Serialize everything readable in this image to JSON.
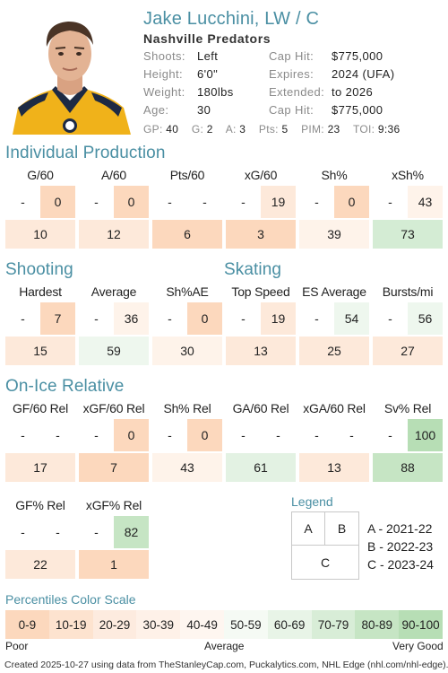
{
  "header": {
    "name": "Jake Lucchini, LW / C",
    "team": "Nashville Predators",
    "bio_left": [
      {
        "label": "Shoots:",
        "value": "Left"
      },
      {
        "label": "Height:",
        "value": "6'0\""
      },
      {
        "label": "Weight:",
        "value": "180lbs"
      },
      {
        "label": "Age:",
        "value": "30"
      }
    ],
    "bio_right": [
      {
        "label": "Cap Hit:",
        "value": "$775,000"
      },
      {
        "label": "Expires:",
        "value": "2024 (UFA)"
      },
      {
        "label": "Extended:",
        "value": "to 2026"
      },
      {
        "label": "Cap Hit:",
        "value": "$775,000"
      }
    ],
    "statline": [
      {
        "label": "GP:",
        "value": "40"
      },
      {
        "label": "G:",
        "value": "2"
      },
      {
        "label": "A:",
        "value": "3"
      },
      {
        "label": "Pts:",
        "value": "5"
      },
      {
        "label": "PIM:",
        "value": "23"
      },
      {
        "label": "TOI:",
        "value": "9:36"
      }
    ]
  },
  "sections": {
    "individual": "Individual Production",
    "shooting": "Shooting",
    "skating": "Skating",
    "onice": "On-Ice Relative"
  },
  "stats": {
    "g60": {
      "label": "G/60",
      "a": "-",
      "b": "0",
      "c": "10",
      "ca": "#ffffff",
      "cb": "#fcd8bd",
      "cc": "#fde9da"
    },
    "a60": {
      "label": "A/60",
      "a": "-",
      "b": "0",
      "c": "12",
      "ca": "#ffffff",
      "cb": "#fcd8bd",
      "cc": "#fde9da"
    },
    "pts60": {
      "label": "Pts/60",
      "a": "-",
      "b": "-",
      "c": "6",
      "ca": "#ffffff",
      "cb": "#ffffff",
      "cc": "#fcd8bd"
    },
    "xg60": {
      "label": "xG/60",
      "a": "-",
      "b": "19",
      "c": "3",
      "ca": "#ffffff",
      "cb": "#fde9da",
      "cc": "#fcd8bd"
    },
    "sh": {
      "label": "Sh%",
      "a": "-",
      "b": "0",
      "c": "39",
      "ca": "#ffffff",
      "cb": "#fcd8bd",
      "cc": "#fef3ea"
    },
    "xsh": {
      "label": "xSh%",
      "a": "-",
      "b": "43",
      "c": "73",
      "ca": "#ffffff",
      "cb": "#fef3ea",
      "cc": "#d4ecd4"
    },
    "hardest": {
      "label": "Hardest",
      "a": "-",
      "b": "7",
      "c": "15",
      "ca": "#ffffff",
      "cb": "#fcd8bd",
      "cc": "#fde9da"
    },
    "average": {
      "label": "Average",
      "a": "-",
      "b": "36",
      "c": "59",
      "ca": "#ffffff",
      "cb": "#fef3ea",
      "cc": "#eef7ee"
    },
    "shae": {
      "label": "Sh%AE",
      "a": "-",
      "b": "0",
      "c": "30",
      "ca": "#ffffff",
      "cb": "#fcd8bd",
      "cc": "#fef3ea"
    },
    "topspeed": {
      "label": "Top Speed",
      "a": "-",
      "b": "19",
      "c": "13",
      "ca": "#ffffff",
      "cb": "#fde9da",
      "cc": "#fde9da"
    },
    "esavg": {
      "label": "ES Average",
      "a": "-",
      "b": "54",
      "c": "25",
      "ca": "#ffffff",
      "cb": "#eef7ee",
      "cc": "#fde9da"
    },
    "bursts": {
      "label": "Bursts/mi",
      "a": "-",
      "b": "56",
      "c": "27",
      "ca": "#ffffff",
      "cb": "#eef7ee",
      "cc": "#fde9da"
    },
    "gf60": {
      "label": "GF/60 Rel",
      "a": "-",
      "b": "-",
      "c": "17",
      "ca": "#ffffff",
      "cb": "#ffffff",
      "cc": "#fde9da"
    },
    "xgf60": {
      "label": "xGF/60 Rel",
      "a": "-",
      "b": "0",
      "c": "7",
      "ca": "#ffffff",
      "cb": "#fcd8bd",
      "cc": "#fcd8bd"
    },
    "shrel": {
      "label": "Sh% Rel",
      "a": "-",
      "b": "0",
      "c": "43",
      "ca": "#ffffff",
      "cb": "#fcd8bd",
      "cc": "#fef3ea"
    },
    "ga60": {
      "label": "GA/60 Rel",
      "a": "-",
      "b": "-",
      "c": "61",
      "ca": "#ffffff",
      "cb": "#ffffff",
      "cc": "#e3f2e3"
    },
    "xga60": {
      "label": "xGA/60 Rel",
      "a": "-",
      "b": "-",
      "c": "13",
      "ca": "#ffffff",
      "cb": "#ffffff",
      "cc": "#fde9da"
    },
    "svrel": {
      "label": "Sv% Rel",
      "a": "-",
      "b": "100",
      "c": "88",
      "ca": "#ffffff",
      "cb": "#b7deb5",
      "cc": "#c6e5c4"
    },
    "gfpct": {
      "label": "GF% Rel",
      "a": "-",
      "b": "-",
      "c": "22",
      "ca": "#ffffff",
      "cb": "#ffffff",
      "cc": "#fde9da"
    },
    "xgfpct": {
      "label": "xGF% Rel",
      "a": "-",
      "b": "82",
      "c": "1",
      "ca": "#ffffff",
      "cb": "#c6e5c4",
      "cc": "#fcd8bd"
    }
  },
  "legend": {
    "title": "Legend",
    "a": "A",
    "b": "B",
    "c": "C",
    "items": [
      "A - 2021-22",
      "B - 2022-23",
      "C - 2023-24"
    ]
  },
  "scale": {
    "title": "Percentiles Color Scale",
    "bins": [
      {
        "label": "0-9",
        "color": "#fcd8bd"
      },
      {
        "label": "10-19",
        "color": "#fde3cf"
      },
      {
        "label": "20-29",
        "color": "#fdebdf"
      },
      {
        "label": "30-39",
        "color": "#fef1e8"
      },
      {
        "label": "40-49",
        "color": "#fef6f0"
      },
      {
        "label": "50-59",
        "color": "#f5faf4"
      },
      {
        "label": "60-69",
        "color": "#e8f4e7"
      },
      {
        "label": "70-79",
        "color": "#d8edd7"
      },
      {
        "label": "80-89",
        "color": "#c6e5c4"
      },
      {
        "label": "90-100",
        "color": "#b7deb5"
      }
    ],
    "poor": "Poor",
    "average": "Average",
    "very_good": "Very Good"
  },
  "footer": "Created 2025-10-27 using data from TheStanleyCap.com, Puckalytics.com, NHL Edge (nhl.com/nhl-edge).",
  "icons": {
    "photo": "player-headshot"
  }
}
